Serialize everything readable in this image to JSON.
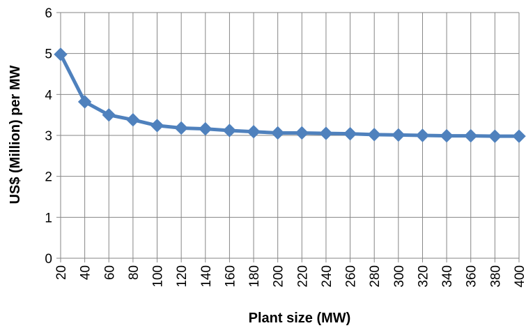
{
  "chart_data": {
    "type": "line",
    "title": "",
    "xlabel": "Plant size (MW)",
    "ylabel": "US$ (Million) per MW",
    "categories": [
      "20",
      "40",
      "60",
      "80",
      "100",
      "120",
      "140",
      "160",
      "180",
      "200",
      "220",
      "240",
      "260",
      "280",
      "300",
      "320",
      "340",
      "360",
      "380",
      "400"
    ],
    "series": [
      {
        "values": [
          4.98,
          3.82,
          3.5,
          3.38,
          3.24,
          3.18,
          3.16,
          3.12,
          3.09,
          3.06,
          3.06,
          3.05,
          3.04,
          3.02,
          3.01,
          3.0,
          2.99,
          2.99,
          2.98,
          2.98
        ],
        "color": "#4F81BD",
        "marker": "diamond"
      }
    ],
    "ylim": [
      0,
      6
    ],
    "yticks": [
      0,
      1,
      2,
      3,
      4,
      5,
      6
    ],
    "grid": true,
    "legend": "none",
    "gridColor": "#868686"
  }
}
